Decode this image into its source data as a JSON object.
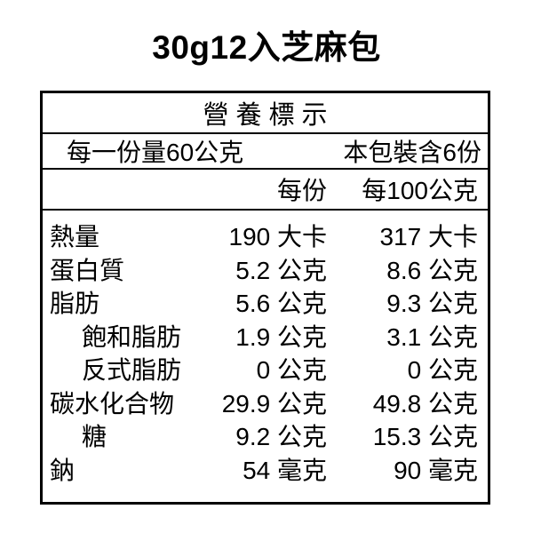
{
  "page": {
    "title": "30g12入芝麻包"
  },
  "nutrition_label": {
    "header": "營養標示",
    "serving_size": "每一份量60公克",
    "servings_per_package": "本包裝含6份",
    "columns": {
      "per_serving": "每份",
      "per_100g": "每100公克"
    },
    "rows": [
      {
        "label": "熱量",
        "indent": false,
        "per_serving": "190 大卡",
        "per_100g": "317 大卡"
      },
      {
        "label": "蛋白質",
        "indent": false,
        "per_serving": "5.2 公克",
        "per_100g": "8.6 公克"
      },
      {
        "label": "脂肪",
        "indent": false,
        "per_serving": "5.6 公克",
        "per_100g": "9.3 公克"
      },
      {
        "label": "飽和脂肪",
        "indent": true,
        "per_serving": "1.9 公克",
        "per_100g": "3.1 公克"
      },
      {
        "label": "反式脂肪",
        "indent": true,
        "per_serving": "0 公克",
        "per_100g": "0 公克"
      },
      {
        "label": "碳水化合物",
        "indent": false,
        "per_serving": "29.9 公克",
        "per_100g": "49.8 公克"
      },
      {
        "label": "糖",
        "indent": true,
        "per_serving": "9.2 公克",
        "per_100g": "15.3 公克"
      },
      {
        "label": "鈉",
        "indent": false,
        "per_serving": "54 毫克",
        "per_100g": "90 毫克"
      }
    ]
  },
  "colors": {
    "text": "#000000",
    "border": "#000000",
    "background": "#ffffff"
  }
}
